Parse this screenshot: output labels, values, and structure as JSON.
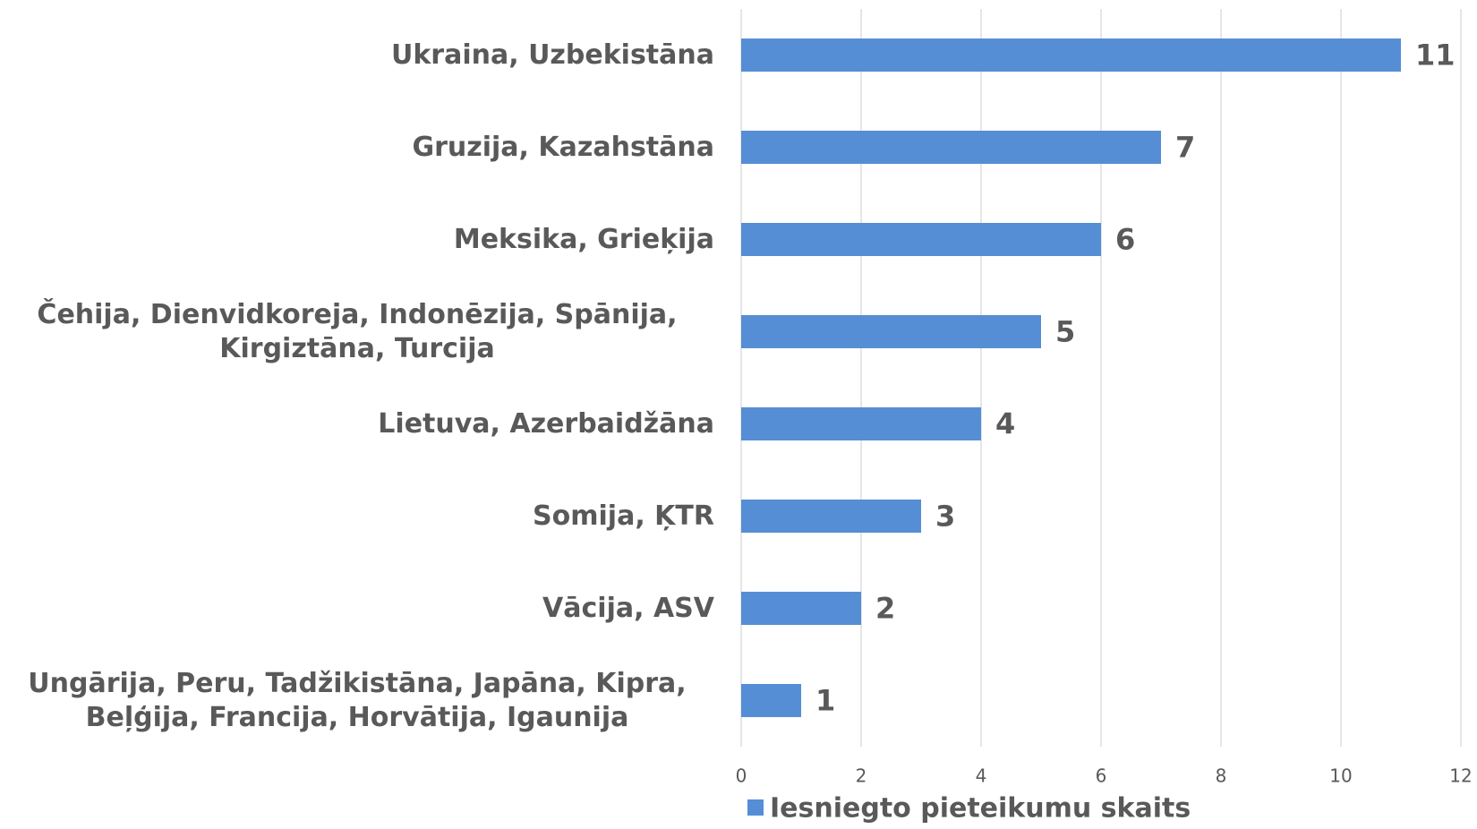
{
  "chart_data": {
    "type": "bar",
    "orientation": "horizontal",
    "categories": [
      "Ukraina, Uzbekistāna",
      "Gruzija, Kazahstāna",
      "Meksika, Grieķija",
      "Čehija, Dienvidkoreja, Indonēzija, Spānija, Kirgiztāna, Turcija",
      "Lietuva, Azerbaidžāna",
      "Somija, ĶTR",
      "Vācija, ASV",
      "Ungārija, Peru, Tadžikistāna, Japāna, Kipra, Beļģija, Francija, Horvātija, Igaunija"
    ],
    "series": [
      {
        "name": "Iesniegto pieteikumu skaits",
        "color": "#558ed5",
        "values": [
          11,
          7,
          6,
          5,
          4,
          3,
          2,
          1
        ]
      }
    ],
    "xlim": [
      0,
      12
    ],
    "xticks": [
      0,
      2,
      4,
      6,
      8,
      10,
      12
    ],
    "grid": true,
    "legend": "bottom"
  }
}
